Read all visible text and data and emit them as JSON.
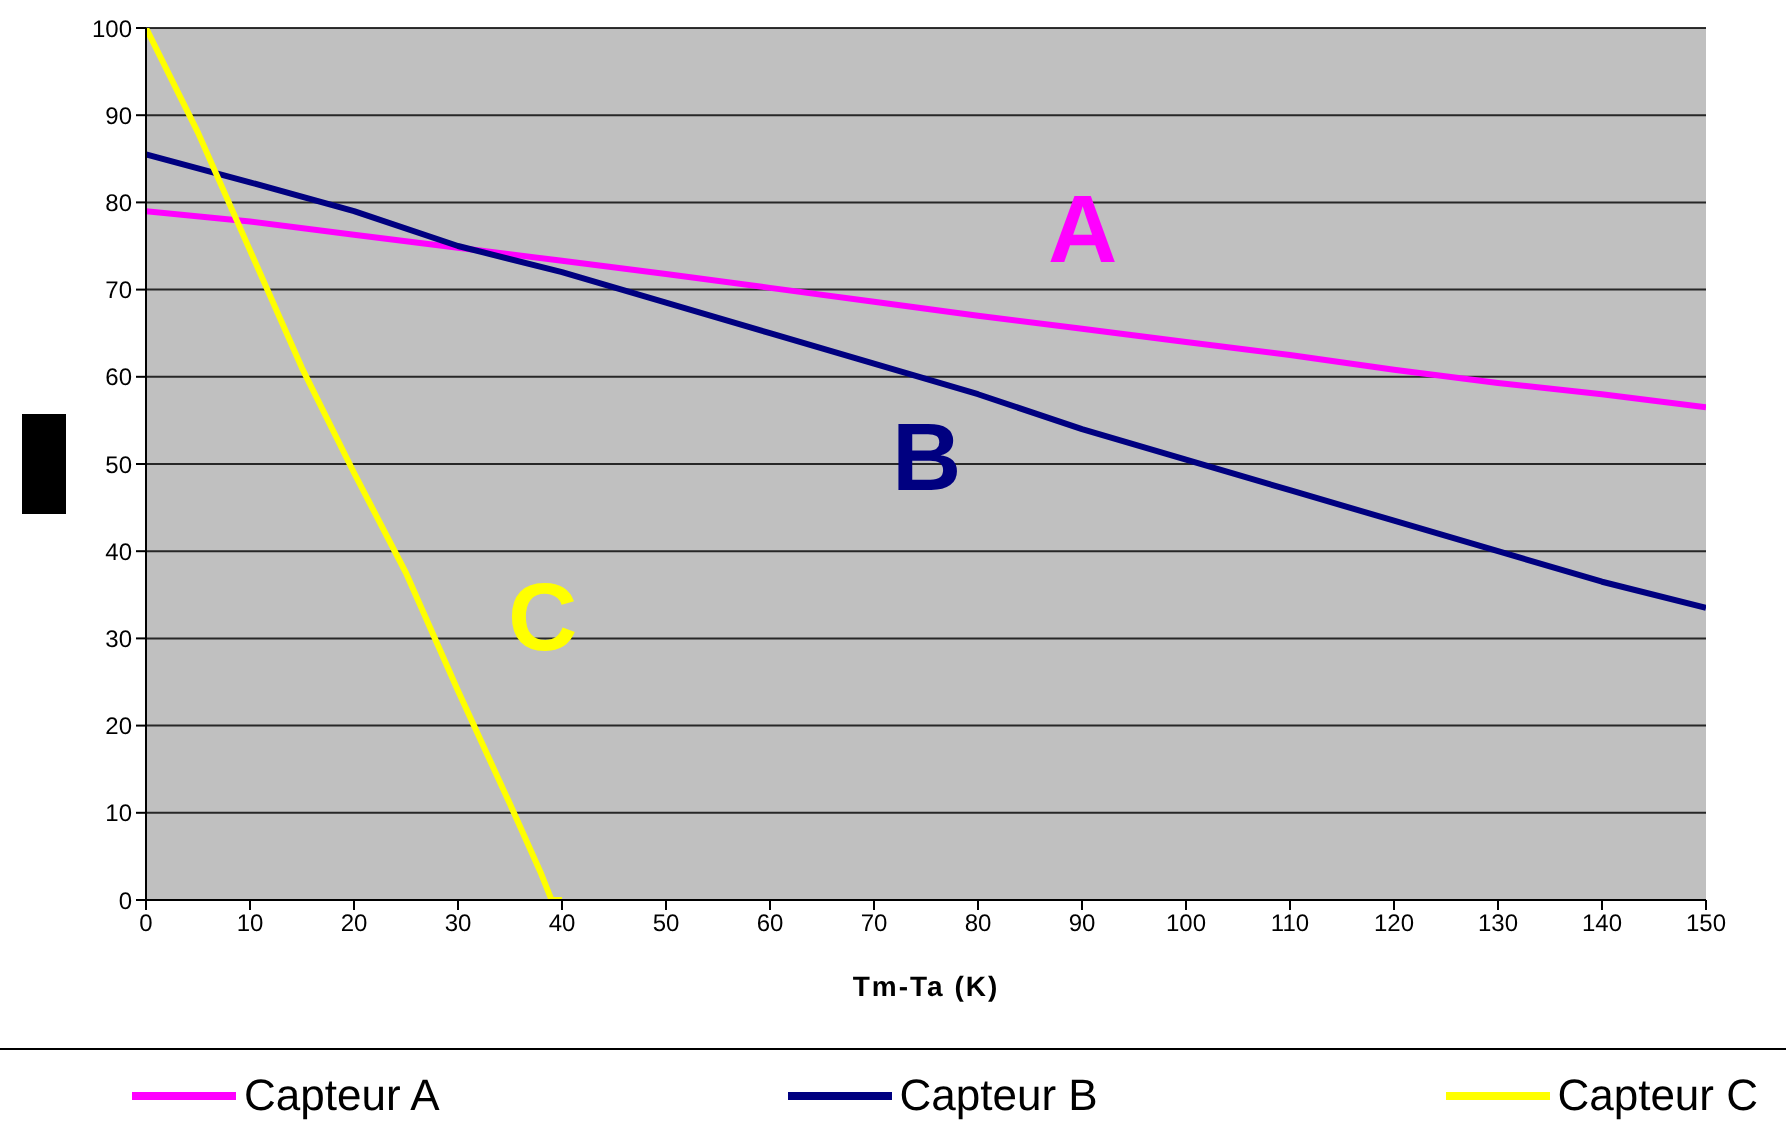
{
  "chart_data": {
    "type": "line",
    "xlabel": "Tm-Ta  (K)",
    "x": [
      0,
      10,
      20,
      30,
      40,
      50,
      60,
      70,
      80,
      90,
      100,
      110,
      120,
      130,
      140,
      150
    ],
    "series": [
      {
        "name": "Capteur A",
        "color": "#ff00ff",
        "values": [
          79,
          77.8,
          76.3,
          74.8,
          73.3,
          71.8,
          70.2,
          68.6,
          67,
          65.5,
          64,
          62.5,
          60.8,
          59.3,
          58,
          56.5
        ]
      },
      {
        "name": "Capteur B",
        "color": "#000080",
        "values": [
          85.5,
          82.3,
          79,
          75,
          72,
          68.5,
          65,
          61.5,
          58,
          54,
          50.5,
          47,
          43.5,
          40,
          36.5,
          33.5
        ]
      },
      {
        "name": "Capteur C",
        "color": "#ffff00",
        "x": [
          0,
          5,
          10,
          15,
          20,
          25,
          30,
          35,
          38,
          39,
          40
        ],
        "values": [
          100,
          88,
          74.5,
          61,
          49,
          37.5,
          24,
          11,
          3,
          0,
          0
        ]
      }
    ],
    "annotations": [
      "A",
      "B",
      "C"
    ],
    "xlim": [
      0,
      150
    ],
    "xticks": [
      0,
      10,
      20,
      30,
      40,
      50,
      60,
      70,
      80,
      90,
      100,
      110,
      120,
      130,
      140,
      150
    ],
    "ylim": [
      0,
      100
    ],
    "yticks": [
      0,
      10,
      20,
      30,
      40,
      50,
      60,
      70,
      80,
      90,
      100
    ],
    "grid": "y",
    "legend": "bottom",
    "marker": "none",
    "line_style": "solid"
  }
}
